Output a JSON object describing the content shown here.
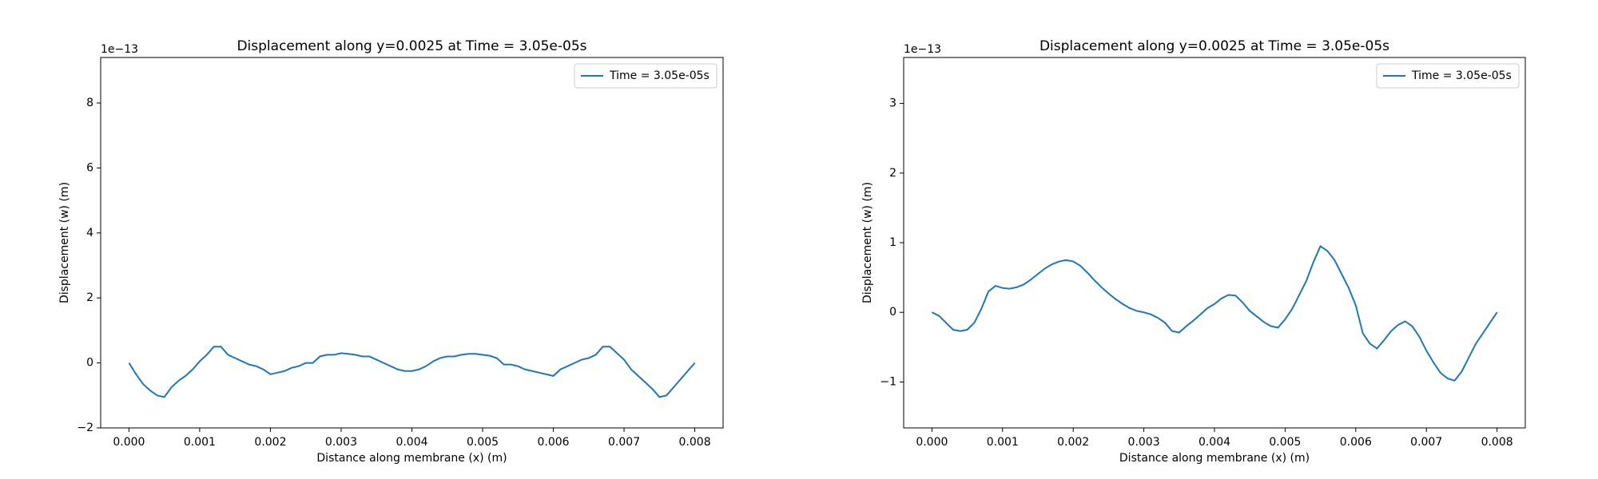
{
  "chart_data": [
    {
      "type": "line",
      "title": "Displacement along y=0.0025 at Time = 3.05e-05s",
      "xlabel": "Distance along membrane (x) (m)",
      "ylabel": "Displacement (w) (m)",
      "offset_label": "1e−13",
      "legend": "upper right",
      "xlim": [
        -0.0004,
        0.0084
      ],
      "ylim": [
        -2,
        9.4
      ],
      "xticks": [
        {
          "value": 0,
          "label": "0.000"
        },
        {
          "value": 0.001,
          "label": "0.001"
        },
        {
          "value": 0.002,
          "label": "0.002"
        },
        {
          "value": 0.003,
          "label": "0.003"
        },
        {
          "value": 0.004,
          "label": "0.004"
        },
        {
          "value": 0.005,
          "label": "0.005"
        },
        {
          "value": 0.006,
          "label": "0.006"
        },
        {
          "value": 0.007,
          "label": "0.007"
        },
        {
          "value": 0.008,
          "label": "0.008"
        }
      ],
      "yticks": [
        {
          "value": -2,
          "label": "−2"
        },
        0,
        2,
        4,
        6,
        8
      ],
      "x": [
        0,
        0.0001,
        0.0002,
        0.0003,
        0.0004,
        0.0005,
        0.0006,
        0.0007,
        0.0008,
        0.0009,
        0.001,
        0.0011,
        0.0012,
        0.0013,
        0.0014,
        0.0015,
        0.0016,
        0.0017,
        0.0018,
        0.0019,
        0.002,
        0.0021,
        0.0022,
        0.0023,
        0.0024,
        0.0025,
        0.0026,
        0.0027,
        0.0028,
        0.0029,
        0.003,
        0.0031,
        0.0032,
        0.0033,
        0.0034,
        0.0035,
        0.0036,
        0.0037,
        0.0038,
        0.0039,
        0.004,
        0.0041,
        0.0042,
        0.0043,
        0.0044,
        0.0045,
        0.0046,
        0.0047,
        0.0048,
        0.0049,
        0.005,
        0.0051,
        0.0052,
        0.0053,
        0.0054,
        0.0055,
        0.0056,
        0.0057,
        0.0058,
        0.0059,
        0.006,
        0.0061,
        0.0062,
        0.0063,
        0.0064,
        0.0065,
        0.0066,
        0.0067,
        0.0068,
        0.0069,
        0.007,
        0.0071,
        0.0072,
        0.0073,
        0.0074,
        0.0075,
        0.0076,
        0.0077,
        0.0078,
        0.0079,
        0.008
      ],
      "series": [
        {
          "name": "Time = 3.05e-05s",
          "color": "#1f77b4",
          "values": [
            0,
            -0.35,
            -0.65,
            -0.85,
            -1.0,
            -1.05,
            -0.75,
            -0.55,
            -0.4,
            -0.2,
            0.05,
            0.25,
            0.5,
            0.5,
            0.25,
            0.15,
            0.05,
            -0.05,
            -0.1,
            -0.2,
            -0.35,
            -0.3,
            -0.25,
            -0.15,
            -0.1,
            0,
            0,
            0.2,
            0.25,
            0.25,
            0.3,
            0.28,
            0.25,
            0.2,
            0.2,
            0.1,
            0,
            -0.1,
            -0.2,
            -0.25,
            -0.25,
            -0.2,
            -0.1,
            0.05,
            0.15,
            0.2,
            0.2,
            0.25,
            0.28,
            0.28,
            0.25,
            0.22,
            0.15,
            -0.05,
            -0.05,
            -0.1,
            -0.2,
            -0.25,
            -0.3,
            -0.35,
            -0.4,
            -0.2,
            -0.1,
            0,
            0.1,
            0.15,
            0.25,
            0.5,
            0.5,
            0.3,
            0.1,
            -0.2,
            -0.4,
            -0.6,
            -0.8,
            -1.05,
            -1.0,
            -0.75,
            -0.5,
            -0.25,
            0
          ]
        }
      ]
    },
    {
      "type": "line",
      "title": "Displacement along y=0.0025 at Time = 3.05e-05s",
      "xlabel": "Distance along membrane (x) (m)",
      "ylabel": "Displacement (w) (m)",
      "offset_label": "1e−13",
      "legend": "upper right",
      "xlim": [
        -0.0004,
        0.0084
      ],
      "ylim": [
        -1.66,
        3.66
      ],
      "xticks": [
        {
          "value": 0,
          "label": "0.000"
        },
        {
          "value": 0.001,
          "label": "0.001"
        },
        {
          "value": 0.002,
          "label": "0.002"
        },
        {
          "value": 0.003,
          "label": "0.003"
        },
        {
          "value": 0.004,
          "label": "0.004"
        },
        {
          "value": 0.005,
          "label": "0.005"
        },
        {
          "value": 0.006,
          "label": "0.006"
        },
        {
          "value": 0.007,
          "label": "0.007"
        },
        {
          "value": 0.008,
          "label": "0.008"
        }
      ],
      "yticks": [
        {
          "value": -1,
          "label": "−1"
        },
        0,
        1,
        2,
        3
      ],
      "x": [
        0,
        0.0001,
        0.0002,
        0.0003,
        0.0004,
        0.0005,
        0.0006,
        0.0007,
        0.0008,
        0.0009,
        0.001,
        0.0011,
        0.0012,
        0.0013,
        0.0014,
        0.0015,
        0.0016,
        0.0017,
        0.0018,
        0.0019,
        0.002,
        0.0021,
        0.0022,
        0.0023,
        0.0024,
        0.0025,
        0.0026,
        0.0027,
        0.0028,
        0.0029,
        0.003,
        0.0031,
        0.0032,
        0.0033,
        0.0034,
        0.0035,
        0.0036,
        0.0037,
        0.0038,
        0.0039,
        0.004,
        0.0041,
        0.0042,
        0.0043,
        0.0044,
        0.0045,
        0.0046,
        0.0047,
        0.0048,
        0.0049,
        0.005,
        0.0051,
        0.0052,
        0.0053,
        0.0054,
        0.0055,
        0.0056,
        0.0057,
        0.0058,
        0.0059,
        0.006,
        0.0061,
        0.0062,
        0.0063,
        0.0064,
        0.0065,
        0.0066,
        0.0067,
        0.0068,
        0.0069,
        0.007,
        0.0071,
        0.0072,
        0.0073,
        0.0074,
        0.0075,
        0.0076,
        0.0077,
        0.0078,
        0.0079,
        0.008
      ],
      "series": [
        {
          "name": "Time = 3.05e-05s",
          "color": "#1f77b4",
          "values": [
            0,
            -0.05,
            -0.15,
            -0.25,
            -0.27,
            -0.25,
            -0.15,
            0.05,
            0.3,
            0.38,
            0.35,
            0.34,
            0.36,
            0.4,
            0.47,
            0.55,
            0.63,
            0.69,
            0.73,
            0.75,
            0.73,
            0.67,
            0.57,
            0.46,
            0.36,
            0.27,
            0.19,
            0.12,
            0.06,
            0.02,
            0,
            -0.03,
            -0.08,
            -0.15,
            -0.27,
            -0.29,
            -0.2,
            -0.12,
            -0.03,
            0.06,
            0.12,
            0.2,
            0.25,
            0.24,
            0.14,
            0.02,
            -0.06,
            -0.14,
            -0.2,
            -0.22,
            -0.1,
            0.05,
            0.25,
            0.45,
            0.72,
            0.95,
            0.88,
            0.75,
            0.55,
            0.35,
            0.1,
            -0.3,
            -0.45,
            -0.52,
            -0.4,
            -0.27,
            -0.18,
            -0.13,
            -0.2,
            -0.35,
            -0.55,
            -0.72,
            -0.87,
            -0.95,
            -0.98,
            -0.85,
            -0.65,
            -0.45,
            -0.3,
            -0.15,
            0
          ]
        }
      ]
    }
  ]
}
